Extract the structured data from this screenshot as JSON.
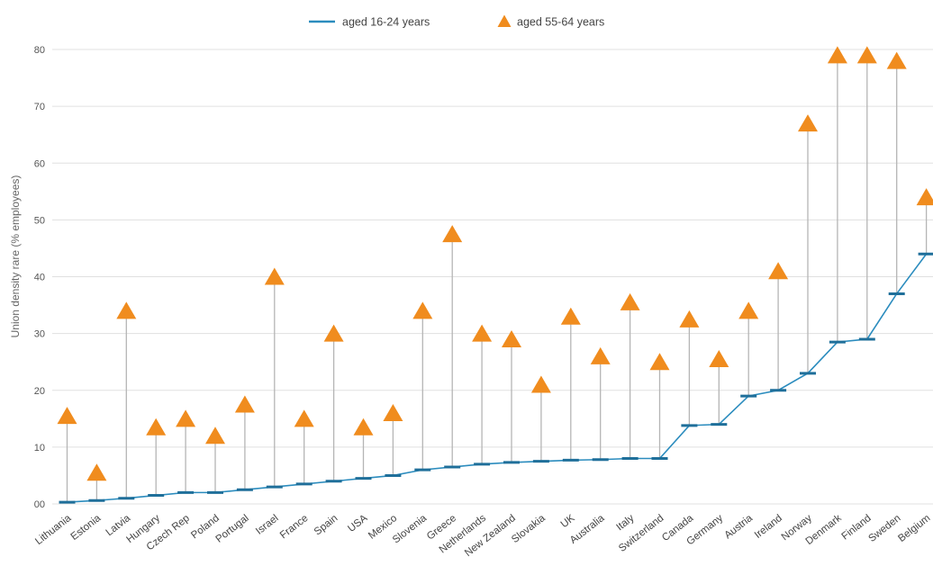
{
  "chart_data": {
    "type": "line",
    "title": "",
    "xlabel": "",
    "ylabel": "Union density rare (% employees)",
    "ylim": [
      0,
      80
    ],
    "yticks": [
      "00",
      "10",
      "20",
      "30",
      "40",
      "50",
      "60",
      "70",
      "80"
    ],
    "grid": true,
    "legend_position": "top-center",
    "categories": [
      "Lithuania",
      "Estonia",
      "Latvia",
      "Hungary",
      "Czech Rep",
      "Poland",
      "Portugal",
      "Israel",
      "France",
      "Spain",
      "USA",
      "Mexico",
      "Slovenia",
      "Greece",
      "Netherlands",
      "New Zealand",
      "Slovakia",
      "UK",
      "Australia",
      "Italy",
      "Switzerland",
      "Canada",
      "Germany",
      "Austria",
      "Ireland",
      "Norway",
      "Denmark",
      "Finland",
      "Sweden",
      "Belgium"
    ],
    "series": [
      {
        "name": "aged 16-24 years",
        "marker": "dash-line",
        "color": "#2b8cbe",
        "values": [
          0.3,
          0.6,
          1.0,
          1.5,
          2.0,
          2.0,
          2.5,
          3.0,
          3.5,
          4.0,
          4.5,
          5.0,
          6.0,
          6.5,
          7.0,
          7.3,
          7.5,
          7.7,
          7.8,
          8.0,
          8.0,
          13.8,
          14.0,
          19.0,
          20.0,
          23.0,
          28.5,
          29.0,
          37.0,
          44.0
        ]
      },
      {
        "name": "aged 55-64 years",
        "marker": "triangle",
        "color": "#f08c1e",
        "values": [
          15.5,
          5.5,
          34.0,
          13.5,
          15.0,
          12.0,
          17.5,
          40.0,
          15.0,
          30.0,
          13.5,
          16.0,
          34.0,
          47.5,
          30.0,
          29.0,
          21.0,
          33.0,
          26.0,
          35.5,
          25.0,
          32.5,
          25.5,
          34.0,
          41.0,
          67.0,
          79.0,
          79.0,
          78.0,
          54.0
        ]
      }
    ]
  },
  "colors": {
    "grid": "#e0e0e0",
    "connector": "#b5b5b5"
  }
}
